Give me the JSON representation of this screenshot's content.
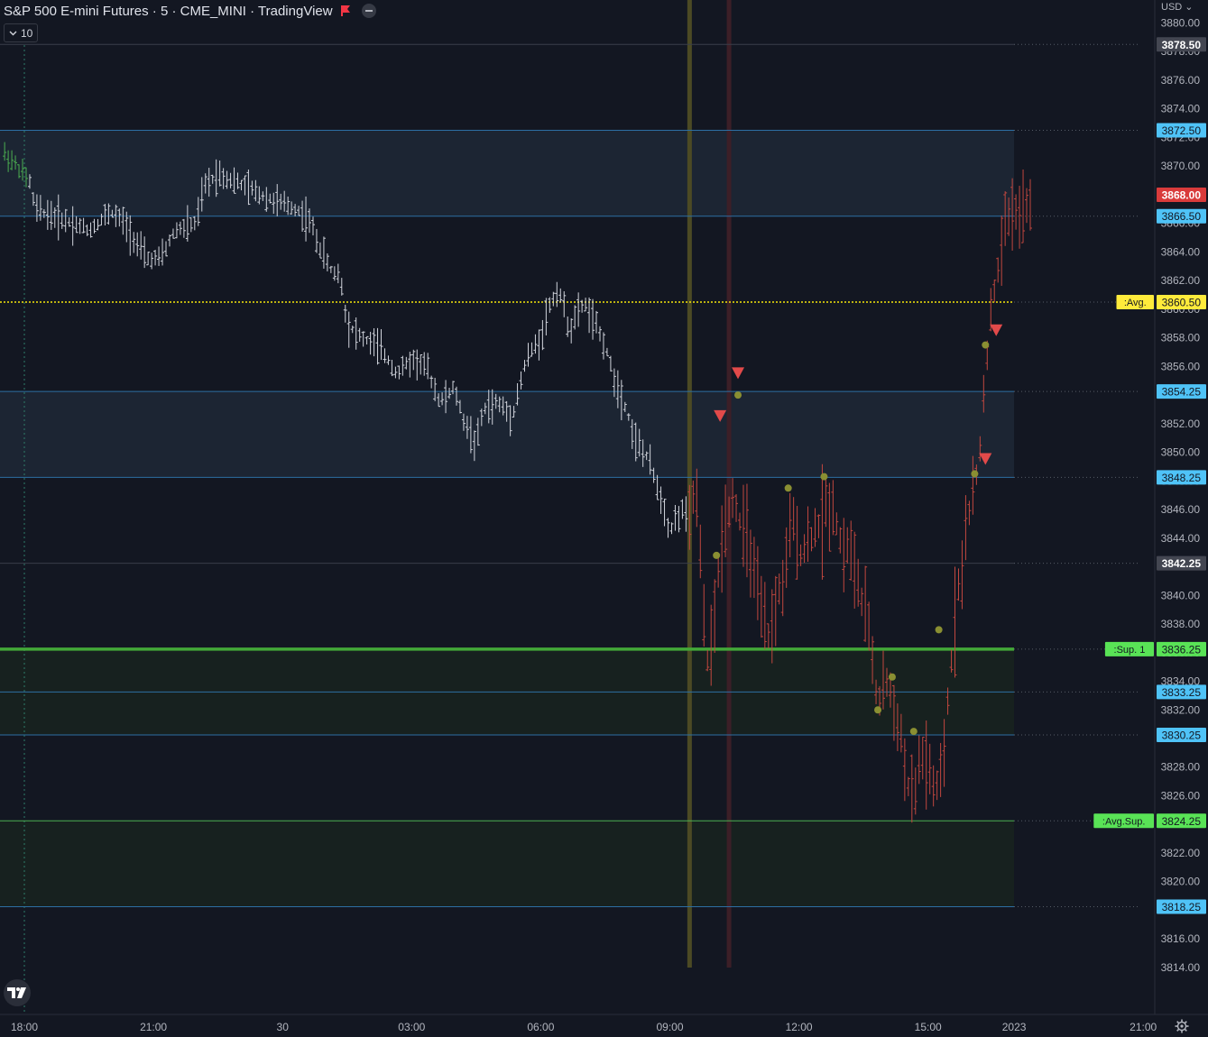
{
  "header": {
    "title": "S&P 500 E-mini Futures · 5 · CME_MINI · TradingView",
    "flag_icon": "flag-icon",
    "collapse_icon": "collapse-icon"
  },
  "interval_selector": {
    "value": "10",
    "icon": "chevron-down-icon"
  },
  "currency": "USD ⌄",
  "colors": {
    "background": "#131722",
    "bar_white": "#d1d4dc",
    "bar_red": "#c1473f",
    "bar_green": "#4caf50",
    "zone_blue": "#1c2533",
    "zone_green": "#17211f",
    "line_blue": "#2d6fa3",
    "line_green_thick": "#43a838",
    "line_green_thin": "#4caf50",
    "avg_line": "#f5e60a",
    "marker_triangle": "#e24a4a",
    "marker_dot": "#8a8f32",
    "vline_olive": "#4c4a24",
    "vline_maroon": "#3c1f27",
    "price_axis_text": "#b2b5be",
    "tag_blue": "#4fc3f7",
    "tag_red": "#d93b3b",
    "tag_gray": "#434651",
    "tag_yellow": "#ffeb3b",
    "tag_green": "#59e356"
  },
  "price_axis": {
    "ticks": [
      "3880.00",
      "3878.00",
      "3876.00",
      "3874.00",
      "3872.00",
      "3870.00",
      "3868.00",
      "3866.00",
      "3864.00",
      "3862.00",
      "3860.00",
      "3858.00",
      "3856.00",
      "3854.00",
      "3852.00",
      "3850.00",
      "3848.00",
      "3846.00",
      "3844.00",
      "3842.00",
      "3840.00",
      "3838.00",
      "3836.00",
      "3834.00",
      "3832.00",
      "3830.00",
      "3828.00",
      "3826.00",
      "3824.00",
      "3822.00",
      "3820.00",
      "3818.00",
      "3816.00",
      "3814.00"
    ]
  },
  "price_tags": [
    {
      "price": 3878.5,
      "text": "3878.50",
      "style": "gray"
    },
    {
      "price": 3872.5,
      "text": "3872.50",
      "style": "blue"
    },
    {
      "price": 3868.0,
      "text": "3868.00",
      "style": "red"
    },
    {
      "price": 3866.5,
      "text": "3866.50",
      "style": "blue"
    },
    {
      "price": 3860.5,
      "text": "3860.50",
      "style": "yellow",
      "label": ":Avg."
    },
    {
      "price": 3854.25,
      "text": "3854.25",
      "style": "blue"
    },
    {
      "price": 3848.25,
      "text": "3848.25",
      "style": "blue"
    },
    {
      "price": 3842.25,
      "text": "3842.25",
      "style": "gray"
    },
    {
      "price": 3836.25,
      "text": "3836.25",
      "style": "green",
      "label": ":Sup. 1"
    },
    {
      "price": 3833.25,
      "text": "3833.25",
      "style": "blue"
    },
    {
      "price": 3830.25,
      "text": "3830.25",
      "style": "blue"
    },
    {
      "price": 3824.25,
      "text": "3824.25",
      "style": "green",
      "label": ":Avg.Sup."
    },
    {
      "price": 3818.25,
      "text": "3818.25",
      "style": "blue"
    }
  ],
  "time_axis": {
    "labels": [
      {
        "text": "18:00",
        "t": 0
      },
      {
        "text": "21:00",
        "t": 36
      },
      {
        "text": "30",
        "t": 72
      },
      {
        "text": "03:00",
        "t": 108
      },
      {
        "text": "06:00",
        "t": 144
      },
      {
        "text": "09:00",
        "t": 180
      },
      {
        "text": "12:00",
        "t": 216
      },
      {
        "text": "15:00",
        "t": 252
      },
      {
        "text": "2023",
        "t": 276
      },
      {
        "text": "21:00",
        "t": 312
      }
    ]
  },
  "chart_data": {
    "type": "bar",
    "symbol": "S&P 500 E-mini Futures",
    "interval": "5",
    "exchange": "CME_MINI",
    "ylim": [
      3813.5,
      3881.0
    ],
    "zones": [
      {
        "from": 3866.5,
        "to": 3872.5,
        "kind": "resistance"
      },
      {
        "from": 3848.25,
        "to": 3854.25,
        "kind": "resistance"
      },
      {
        "from": 3830.25,
        "to": 3836.25,
        "kind": "support"
      },
      {
        "from": 3818.25,
        "to": 3824.25,
        "kind": "support"
      }
    ],
    "levels": [
      {
        "price": 3878.5,
        "kind": "gray"
      },
      {
        "price": 3872.5,
        "kind": "blue"
      },
      {
        "price": 3866.5,
        "kind": "blue"
      },
      {
        "price": 3860.5,
        "kind": "avg"
      },
      {
        "price": 3854.25,
        "kind": "blue"
      },
      {
        "price": 3848.25,
        "kind": "blue"
      },
      {
        "price": 3842.25,
        "kind": "gray"
      },
      {
        "price": 3836.25,
        "kind": "sup1"
      },
      {
        "price": 3833.25,
        "kind": "blue"
      },
      {
        "price": 3830.25,
        "kind": "blue"
      },
      {
        "price": 3824.25,
        "kind": "avgsup"
      },
      {
        "price": 3818.25,
        "kind": "blue"
      }
    ],
    "vertical_markers": [
      {
        "t": 185.5,
        "kind": "olive"
      },
      {
        "t": 196.5,
        "kind": "maroon"
      }
    ],
    "session_start_t": 0,
    "series": [
      {
        "name": "green_segment",
        "color": "green",
        "from_t": -6,
        "to_t": 1,
        "anchors": [
          [
            -6,
            3871.0
          ],
          [
            -2,
            3870.0
          ],
          [
            1,
            3869.0
          ]
        ]
      },
      {
        "name": "overnight",
        "color": "white",
        "from_t": 1,
        "to_t": 185,
        "anchors": [
          [
            1,
            3869.5
          ],
          [
            3,
            3867.0
          ],
          [
            8,
            3866.5
          ],
          [
            14,
            3866.0
          ],
          [
            18,
            3865.5
          ],
          [
            24,
            3866.8
          ],
          [
            28,
            3866.0
          ],
          [
            34,
            3863.5
          ],
          [
            38,
            3863.5
          ],
          [
            42,
            3865.5
          ],
          [
            48,
            3866.0
          ],
          [
            50,
            3868.5
          ],
          [
            54,
            3869.5
          ],
          [
            58,
            3869.0
          ],
          [
            62,
            3868.5
          ],
          [
            66,
            3868.0
          ],
          [
            70,
            3867.5
          ],
          [
            76,
            3867.0
          ],
          [
            80,
            3866.0
          ],
          [
            82,
            3864.5
          ],
          [
            86,
            3862.5
          ],
          [
            88,
            3862.5
          ],
          [
            90,
            3859.0
          ],
          [
            94,
            3858.0
          ],
          [
            98,
            3857.5
          ],
          [
            100,
            3857.0
          ],
          [
            104,
            3855.5
          ],
          [
            108,
            3856.5
          ],
          [
            112,
            3856.0
          ],
          [
            116,
            3853.5
          ],
          [
            120,
            3854.5
          ],
          [
            122,
            3852.5
          ],
          [
            126,
            3850.5
          ],
          [
            128,
            3853.0
          ],
          [
            132,
            3853.5
          ],
          [
            136,
            3852.5
          ],
          [
            140,
            3856.5
          ],
          [
            144,
            3858.0
          ],
          [
            146,
            3860.0
          ],
          [
            149,
            3861.5
          ],
          [
            152,
            3858.5
          ],
          [
            156,
            3860.5
          ],
          [
            158,
            3859.5
          ],
          [
            162,
            3857.5
          ],
          [
            164,
            3855.5
          ],
          [
            168,
            3853.0
          ],
          [
            170,
            3851.0
          ],
          [
            174,
            3849.5
          ],
          [
            178,
            3846.5
          ],
          [
            180,
            3844.5
          ],
          [
            182,
            3845.5
          ],
          [
            184,
            3846.0
          ],
          [
            185,
            3845.0
          ]
        ]
      },
      {
        "name": "session",
        "color": "red",
        "from_t": 185,
        "to_t": 281,
        "anchors": [
          [
            185,
            3844.0
          ],
          [
            187,
            3848.0
          ],
          [
            189,
            3841.0
          ],
          [
            190,
            3835.0
          ],
          [
            192,
            3837.0
          ],
          [
            194,
            3843.0
          ],
          [
            196,
            3846.0
          ],
          [
            198,
            3847.0
          ],
          [
            200,
            3844.5
          ],
          [
            202,
            3844.0
          ],
          [
            204,
            3840.5
          ],
          [
            206,
            3838.0
          ],
          [
            208,
            3837.0
          ],
          [
            210,
            3840.0
          ],
          [
            212,
            3841.0
          ],
          [
            214,
            3845.5
          ],
          [
            216,
            3843.0
          ],
          [
            218,
            3843.5
          ],
          [
            220,
            3844.5
          ],
          [
            222,
            3845.0
          ],
          [
            224,
            3846.5
          ],
          [
            226,
            3846.0
          ],
          [
            228,
            3843.0
          ],
          [
            230,
            3843.5
          ],
          [
            234,
            3839.0
          ],
          [
            236,
            3837.0
          ],
          [
            238,
            3832.0
          ],
          [
            240,
            3834.5
          ],
          [
            242,
            3832.5
          ],
          [
            244,
            3831.0
          ],
          [
            246,
            3827.0
          ],
          [
            248,
            3825.5
          ],
          [
            250,
            3829.0
          ],
          [
            252,
            3828.0
          ],
          [
            254,
            3826.0
          ],
          [
            256,
            3827.5
          ],
          [
            258,
            3834.0
          ],
          [
            260,
            3840.0
          ],
          [
            262,
            3843.0
          ],
          [
            264,
            3847.0
          ],
          [
            266,
            3848.5
          ],
          [
            268,
            3856.0
          ],
          [
            270,
            3860.5
          ],
          [
            272,
            3863.5
          ],
          [
            274,
            3866.5
          ],
          [
            276,
            3867.0
          ],
          [
            278,
            3866.5
          ],
          [
            281,
            3867.5
          ]
        ]
      }
    ],
    "triangles": [
      {
        "t": 194,
        "price": 3852.5
      },
      {
        "t": 199,
        "price": 3855.5
      },
      {
        "t": 268,
        "price": 3849.5
      },
      {
        "t": 271,
        "price": 3858.5
      }
    ],
    "dots": [
      {
        "t": 193,
        "price": 3842.8
      },
      {
        "t": 199,
        "price": 3854.0
      },
      {
        "t": 213,
        "price": 3847.5
      },
      {
        "t": 223,
        "price": 3848.3
      },
      {
        "t": 238,
        "price": 3832.0
      },
      {
        "t": 242,
        "price": 3834.3
      },
      {
        "t": 248,
        "price": 3830.5
      },
      {
        "t": 255,
        "price": 3837.6
      },
      {
        "t": 265,
        "price": 3848.5
      },
      {
        "t": 268,
        "price": 3857.5
      }
    ]
  }
}
